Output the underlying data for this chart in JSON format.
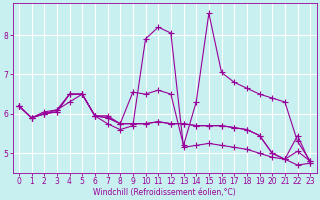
{
  "xlabel": "Windchill (Refroidissement éolien,°C)",
  "bg_color": "#c8f0f0",
  "line_color": "#990099",
  "grid_color": "#ffffff",
  "xlim": [
    -0.5,
    23.5
  ],
  "ylim": [
    4.5,
    8.8
  ],
  "yticks": [
    5,
    6,
    7,
    8
  ],
  "xticks": [
    0,
    1,
    2,
    3,
    4,
    5,
    6,
    7,
    8,
    9,
    10,
    11,
    12,
    13,
    14,
    15,
    16,
    17,
    18,
    19,
    20,
    21,
    22,
    23
  ],
  "series": [
    [
      6.2,
      5.9,
      6.0,
      6.1,
      6.3,
      6.5,
      5.95,
      5.75,
      5.6,
      5.7,
      7.9,
      8.2,
      8.05,
      5.15,
      5.2,
      5.25,
      5.2,
      5.15,
      5.1,
      5.0,
      4.9,
      4.85,
      5.05,
      4.8
    ],
    [
      6.2,
      5.9,
      6.05,
      6.1,
      6.5,
      6.5,
      5.95,
      5.95,
      5.75,
      6.55,
      6.5,
      6.6,
      6.5,
      5.2,
      6.3,
      8.55,
      7.05,
      6.8,
      6.65,
      6.5,
      6.4,
      6.3,
      5.3,
      4.8
    ],
    [
      6.2,
      5.9,
      6.0,
      6.05,
      6.5,
      6.5,
      5.95,
      5.9,
      5.75,
      5.75,
      5.75,
      5.8,
      5.75,
      5.75,
      5.7,
      5.7,
      5.7,
      5.65,
      5.6,
      5.45,
      5.0,
      4.85,
      4.7,
      4.75
    ],
    [
      6.2,
      5.9,
      6.0,
      6.05,
      6.5,
      6.5,
      5.95,
      5.9,
      5.75,
      5.75,
      5.75,
      5.8,
      5.75,
      5.75,
      5.7,
      5.7,
      5.7,
      5.65,
      5.6,
      5.45,
      5.0,
      4.85,
      5.45,
      4.75
    ]
  ]
}
